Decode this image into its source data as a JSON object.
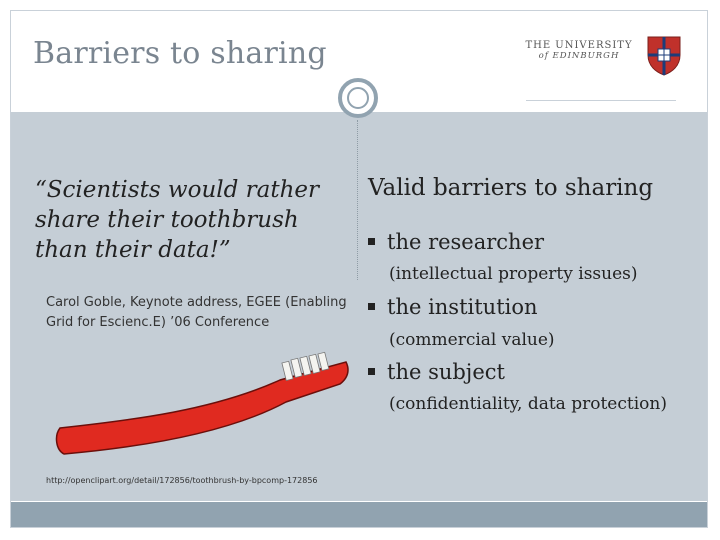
{
  "slide": {
    "title": "Barriers to sharing",
    "logo": {
      "line1": "THE UNIVERSITY",
      "line2": "of EDINBURGH"
    },
    "left": {
      "quote": "“Scientists would rather share their toothbrush than their data!”",
      "attribution": "Carol Goble, Keynote address, EGEE (Enabling Grid for Escienc.E) ’06 Conference",
      "image_url": "http://openclipart.org/detail/172856/toothbrush-by-bpcomp-172856"
    },
    "right": {
      "heading": "Valid barriers to sharing",
      "items": [
        {
          "label": "the researcher",
          "detail": "(intellectual property issues)"
        },
        {
          "label": "the institution",
          "detail": "(commercial value)"
        },
        {
          "label": "the subject",
          "detail": "(confidentiality, data protection)"
        }
      ]
    }
  },
  "colors": {
    "panel": "#c5ced6",
    "bar": "#91a3b0",
    "title": "#7a8590",
    "toothbrush": "#e02a20"
  }
}
